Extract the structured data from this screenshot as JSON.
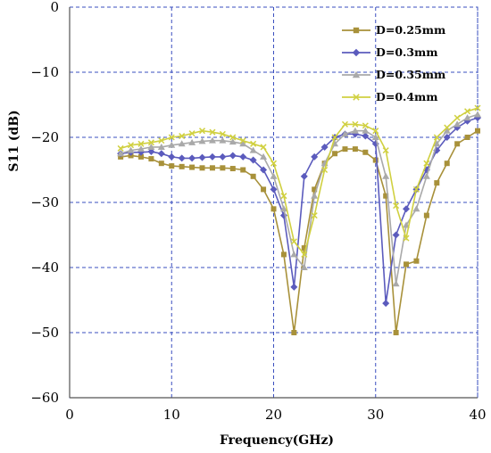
{
  "chart_data": {
    "type": "line",
    "title": "",
    "xlabel": "Frequency(GHz)",
    "ylabel": "S11  (dB)",
    "xlim": [
      0,
      40
    ],
    "ylim": [
      -60,
      0
    ],
    "xticks": [
      0,
      10,
      20,
      30,
      40
    ],
    "yticks": [
      0,
      -10,
      -20,
      -30,
      -40,
      -50,
      -60
    ],
    "xtick_labels": [
      "0",
      "10",
      "20",
      "30",
      "40"
    ],
    "ytick_labels": [
      "0",
      "−10",
      "−20",
      "−30",
      "−40",
      "−50",
      "−60"
    ],
    "grid": true,
    "legend_position": "top-right",
    "series": [
      {
        "name": "D=0.25mm",
        "color": "#a8913a",
        "marker": "square",
        "x": [
          5,
          6,
          7,
          8,
          9,
          10,
          11,
          12,
          13,
          14,
          15,
          16,
          17,
          18,
          19,
          20,
          21,
          22,
          23,
          24,
          25,
          26,
          27,
          28,
          29,
          30,
          31,
          32,
          33,
          34,
          35,
          36,
          37,
          38,
          39,
          40
        ],
        "y": [
          -23,
          -22.8,
          -23,
          -23.3,
          -24,
          -24.4,
          -24.5,
          -24.6,
          -24.7,
          -24.7,
          -24.7,
          -24.8,
          -25,
          -26,
          -28,
          -31,
          -38,
          -50,
          -37,
          -28,
          -24,
          -22.5,
          -21.8,
          -21.8,
          -22.3,
          -23.5,
          -29,
          -50,
          -39.5,
          -39,
          -32,
          -27,
          -24,
          -21,
          -20,
          -19
        ]
      },
      {
        "name": "D=0.3mm",
        "color": "#5b5bbd",
        "marker": "diamond",
        "x": [
          5,
          6,
          7,
          8,
          9,
          10,
          11,
          12,
          13,
          14,
          15,
          16,
          17,
          18,
          19,
          20,
          21,
          22,
          23,
          24,
          25,
          26,
          27,
          28,
          29,
          30,
          31,
          32,
          33,
          34,
          35,
          36,
          37,
          38,
          39,
          40
        ],
        "y": [
          -22.5,
          -22.3,
          -22.3,
          -22.2,
          -22.5,
          -23,
          -23.2,
          -23.2,
          -23.1,
          -23,
          -23,
          -22.8,
          -23,
          -23.5,
          -25,
          -28,
          -32,
          -43,
          -26,
          -23,
          -21.5,
          -20,
          -19.5,
          -19.5,
          -19.8,
          -21,
          -45.5,
          -35,
          -31,
          -28,
          -25,
          -22,
          -20,
          -18.5,
          -17.5,
          -17
        ]
      },
      {
        "name": "D=0.35mm",
        "color": "#a9a9a9",
        "marker": "triangle",
        "x": [
          5,
          6,
          7,
          8,
          9,
          10,
          11,
          12,
          13,
          14,
          15,
          16,
          17,
          18,
          19,
          20,
          21,
          22,
          23,
          24,
          25,
          26,
          27,
          28,
          29,
          30,
          31,
          32,
          33,
          34,
          35,
          36,
          37,
          38,
          39,
          40
        ],
        "y": [
          -22.5,
          -22,
          -21.8,
          -21.5,
          -21.5,
          -21.2,
          -21,
          -20.8,
          -20.6,
          -20.5,
          -20.5,
          -20.7,
          -21,
          -22,
          -23,
          -26,
          -31,
          -38,
          -40,
          -29,
          -24,
          -21,
          -19.5,
          -19,
          -19,
          -20,
          -26,
          -42.5,
          -33.5,
          -31,
          -26,
          -21,
          -19,
          -18,
          -17,
          -16.5
        ]
      },
      {
        "name": "D=0.4mm",
        "color": "#d0d040",
        "marker": "x",
        "x": [
          5,
          6,
          7,
          8,
          9,
          10,
          11,
          12,
          13,
          14,
          15,
          16,
          17,
          18,
          19,
          20,
          21,
          22,
          23,
          24,
          25,
          26,
          27,
          28,
          29,
          30,
          31,
          32,
          33,
          34,
          35,
          36,
          37,
          38,
          39,
          40
        ],
        "y": [
          -21.7,
          -21.2,
          -21,
          -20.8,
          -20.5,
          -20,
          -19.8,
          -19.4,
          -19,
          -19.2,
          -19.5,
          -20,
          -20.5,
          -21,
          -21.5,
          -24,
          -29,
          -36,
          -38,
          -32,
          -25,
          -20,
          -18,
          -18,
          -18.2,
          -19,
          -22,
          -30.5,
          -35.5,
          -28,
          -24,
          -20,
          -18.5,
          -17,
          -16,
          -15.5
        ]
      }
    ]
  }
}
